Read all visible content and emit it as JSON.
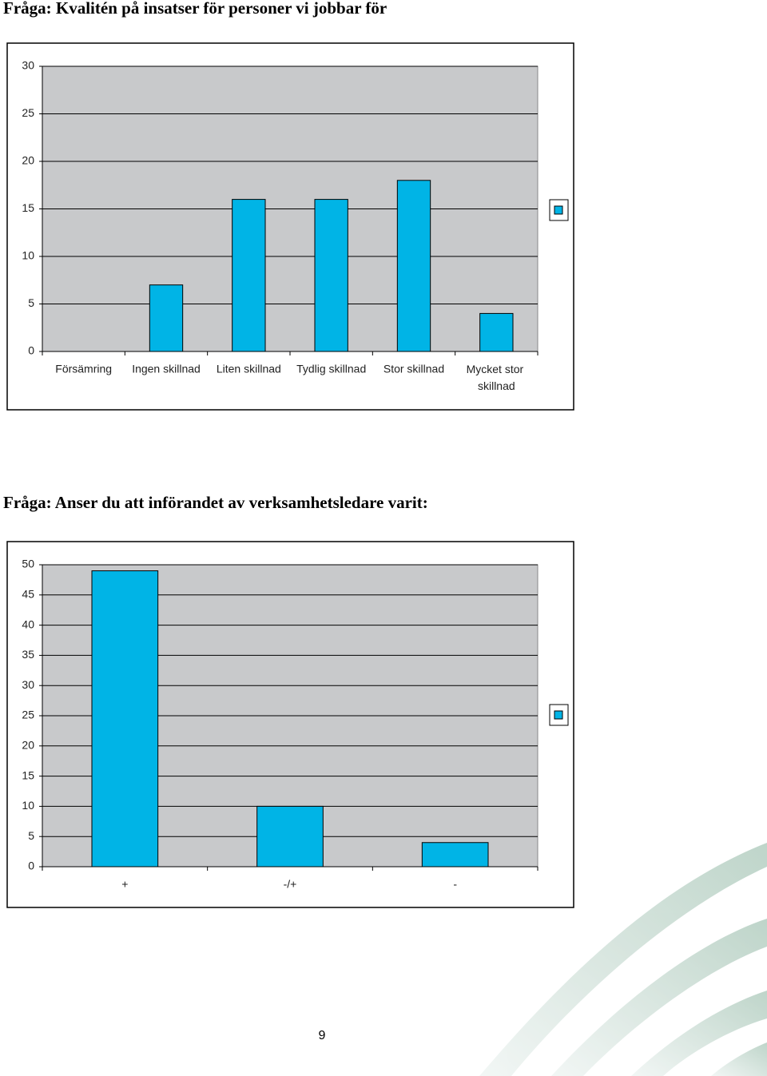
{
  "chart_data": [
    {
      "type": "bar",
      "title": "Fråga: Kvalitén på insatser för personer vi jobbar för",
      "categories": [
        "Försämring",
        "Ingen skillnad",
        "Liten skillnad",
        "Tydlig skillnad",
        "Stor skillnad",
        "Mycket stor skillnad"
      ],
      "values": [
        0,
        7,
        16,
        16,
        18,
        4
      ],
      "color": "#00b4e6",
      "ylim": [
        0,
        30
      ],
      "yticks": [
        0,
        5,
        10,
        15,
        20,
        25,
        30
      ],
      "grid": true
    },
    {
      "type": "bar",
      "title": "Fråga: Anser du att införandet av verksamhetsledare varit:",
      "categories": [
        "+",
        "-/+",
        "-"
      ],
      "values": [
        49,
        10,
        4
      ],
      "color": "#00b4e6",
      "ylim": [
        0,
        50
      ],
      "yticks": [
        0,
        5,
        10,
        15,
        20,
        25,
        30,
        35,
        40,
        45,
        50
      ],
      "grid": true
    }
  ],
  "page_number": "9"
}
